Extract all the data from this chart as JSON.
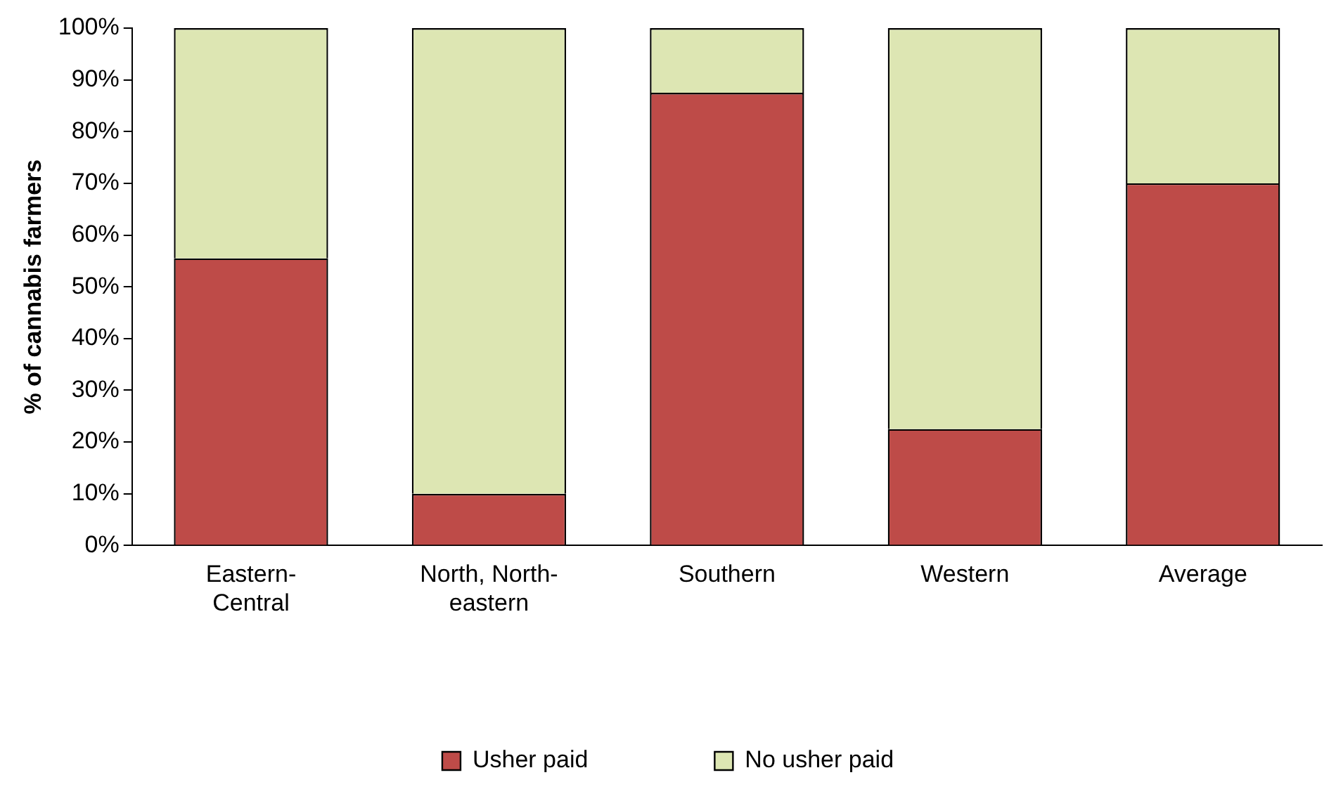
{
  "chart_data": {
    "type": "bar",
    "stacked": true,
    "ylabel": "% of cannabis farmers",
    "categories": [
      "Eastern-\nCentral",
      "North, North-\neastern",
      "Southern",
      "Western",
      "Average"
    ],
    "series": [
      {
        "name": "Usher paid",
        "color": "#be4b48",
        "values": [
          55.5,
          10,
          87.5,
          22.5,
          70
        ]
      },
      {
        "name": "No usher paid",
        "color": "#dde6b3",
        "values": [
          44.5,
          90,
          12.5,
          77.5,
          30
        ]
      }
    ],
    "ylim": [
      0,
      100
    ],
    "yticks": [
      {
        "value": 0,
        "label": "0%"
      },
      {
        "value": 10,
        "label": "10%"
      },
      {
        "value": 20,
        "label": "20%"
      },
      {
        "value": 30,
        "label": "30%"
      },
      {
        "value": 40,
        "label": "40%"
      },
      {
        "value": 50,
        "label": "50%"
      },
      {
        "value": 60,
        "label": "60%"
      },
      {
        "value": 70,
        "label": "70%"
      },
      {
        "value": 80,
        "label": "80%"
      },
      {
        "value": 90,
        "label": "90%"
      },
      {
        "value": 100,
        "label": "100%"
      }
    ],
    "grid": false,
    "legend": "bottom"
  }
}
